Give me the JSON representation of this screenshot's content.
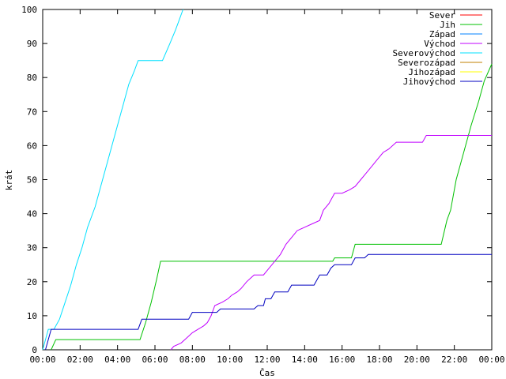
{
  "chart_data": {
    "type": "line",
    "title": "",
    "xlabel": "Čas",
    "ylabel": "krát",
    "xlim": [
      0,
      24
    ],
    "ylim": [
      0,
      100
    ],
    "x_ticks": [
      {
        "v": 0,
        "label": "00:00"
      },
      {
        "v": 2,
        "label": "02:00"
      },
      {
        "v": 4,
        "label": "04:00"
      },
      {
        "v": 6,
        "label": "06:00"
      },
      {
        "v": 8,
        "label": "08:00"
      },
      {
        "v": 10,
        "label": "10:00"
      },
      {
        "v": 12,
        "label": "12:00"
      },
      {
        "v": 14,
        "label": "14:00"
      },
      {
        "v": 16,
        "label": "16:00"
      },
      {
        "v": 18,
        "label": "18:00"
      },
      {
        "v": 20,
        "label": "20:00"
      },
      {
        "v": 22,
        "label": "22:00"
      },
      {
        "v": 24,
        "label": "00:00"
      }
    ],
    "y_ticks": [
      0,
      10,
      20,
      30,
      40,
      50,
      60,
      70,
      80,
      90,
      100
    ],
    "grid": false,
    "legend_position": "top-right",
    "series": [
      {
        "name": "Sever",
        "color": "#ff0000",
        "points": []
      },
      {
        "name": "Jih",
        "color": "#00c000",
        "points": [
          [
            0.45,
            0
          ],
          [
            0.7,
            3
          ],
          [
            5.2,
            3
          ],
          [
            5.5,
            8
          ],
          [
            5.8,
            14
          ],
          [
            6.1,
            21
          ],
          [
            6.3,
            26
          ],
          [
            15.5,
            26
          ],
          [
            15.6,
            27
          ],
          [
            16.5,
            27
          ],
          [
            16.7,
            31
          ],
          [
            21.3,
            31
          ],
          [
            21.6,
            38
          ],
          [
            21.8,
            41
          ],
          [
            22.1,
            50
          ],
          [
            22.5,
            58
          ],
          [
            22.9,
            66
          ],
          [
            23.3,
            73
          ],
          [
            23.6,
            79
          ],
          [
            24.0,
            84
          ]
        ]
      },
      {
        "name": "Západ",
        "color": "#0080ff",
        "points": []
      },
      {
        "name": "Východ",
        "color": "#c000ff",
        "points": [
          [
            6.85,
            0
          ],
          [
            7.0,
            1
          ],
          [
            7.4,
            2
          ],
          [
            7.8,
            4
          ],
          [
            8.0,
            5
          ],
          [
            8.3,
            6
          ],
          [
            8.6,
            7
          ],
          [
            8.8,
            8
          ],
          [
            9.0,
            10
          ],
          [
            9.2,
            13
          ],
          [
            9.6,
            14
          ],
          [
            9.9,
            15
          ],
          [
            10.1,
            16
          ],
          [
            10.4,
            17
          ],
          [
            10.6,
            18
          ],
          [
            10.9,
            20
          ],
          [
            11.1,
            21
          ],
          [
            11.3,
            22
          ],
          [
            11.8,
            22
          ],
          [
            12.1,
            24
          ],
          [
            12.4,
            26
          ],
          [
            12.7,
            28
          ],
          [
            13.0,
            31
          ],
          [
            13.3,
            33
          ],
          [
            13.6,
            35
          ],
          [
            14.0,
            36
          ],
          [
            14.4,
            37
          ],
          [
            14.8,
            38
          ],
          [
            15.0,
            41
          ],
          [
            15.3,
            43
          ],
          [
            15.6,
            46
          ],
          [
            16.0,
            46
          ],
          [
            16.4,
            47
          ],
          [
            16.7,
            48
          ],
          [
            17.0,
            50
          ],
          [
            17.3,
            52
          ],
          [
            17.6,
            54
          ],
          [
            17.9,
            56
          ],
          [
            18.2,
            58
          ],
          [
            18.5,
            59
          ],
          [
            18.9,
            61
          ],
          [
            20.3,
            61
          ],
          [
            20.5,
            63
          ],
          [
            24.0,
            63
          ]
        ]
      },
      {
        "name": "Severovýchod",
        "color": "#00e0ff",
        "points": [
          [
            0,
            0
          ],
          [
            0.3,
            6
          ],
          [
            0.6,
            6
          ],
          [
            0.9,
            9
          ],
          [
            1.2,
            14
          ],
          [
            1.5,
            19
          ],
          [
            1.8,
            25
          ],
          [
            2.1,
            30
          ],
          [
            2.4,
            36
          ],
          [
            2.8,
            42
          ],
          [
            3.1,
            48
          ],
          [
            3.4,
            54
          ],
          [
            3.7,
            60
          ],
          [
            4.0,
            66
          ],
          [
            4.3,
            72
          ],
          [
            4.6,
            78
          ],
          [
            4.9,
            82
          ],
          [
            5.1,
            85
          ],
          [
            6.4,
            85
          ],
          [
            6.8,
            90
          ],
          [
            7.1,
            94
          ],
          [
            7.3,
            97
          ],
          [
            7.5,
            100
          ]
        ]
      },
      {
        "name": "Severozápad",
        "color": "#c08000",
        "points": []
      },
      {
        "name": "Jihozápad",
        "color": "#ffff00",
        "points": []
      },
      {
        "name": "Jihovýchod",
        "color": "#0000c0",
        "points": [
          [
            0.15,
            0
          ],
          [
            0.45,
            6
          ],
          [
            5.1,
            6
          ],
          [
            5.3,
            9
          ],
          [
            7.8,
            9
          ],
          [
            8.0,
            11
          ],
          [
            9.3,
            11
          ],
          [
            9.5,
            12
          ],
          [
            11.3,
            12
          ],
          [
            11.5,
            13
          ],
          [
            11.8,
            13
          ],
          [
            11.9,
            15
          ],
          [
            12.2,
            15
          ],
          [
            12.4,
            17
          ],
          [
            13.1,
            17
          ],
          [
            13.3,
            19
          ],
          [
            14.5,
            19
          ],
          [
            14.8,
            22
          ],
          [
            15.2,
            22
          ],
          [
            15.4,
            24
          ],
          [
            15.6,
            25
          ],
          [
            16.5,
            25
          ],
          [
            16.7,
            27
          ],
          [
            17.2,
            27
          ],
          [
            17.4,
            28
          ],
          [
            24.0,
            28
          ]
        ]
      }
    ]
  }
}
